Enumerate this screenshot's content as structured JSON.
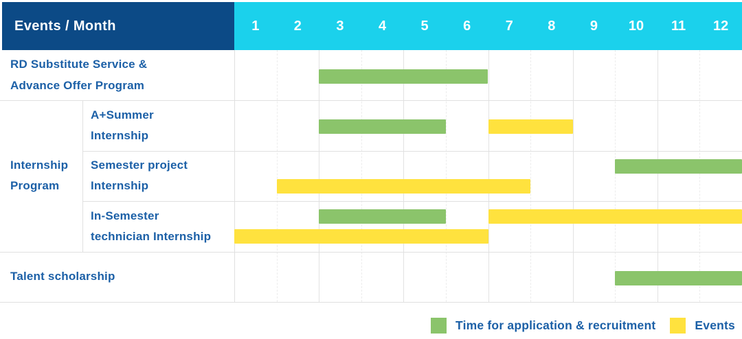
{
  "colors": {
    "background": "#FFFFFF",
    "header_bg": "#0C4A86",
    "months_bg": "#1BD1EC",
    "header_text": "#FFFFFF",
    "label_text": "#1C60A7",
    "application_color": "#8BC46B",
    "events_color": "#FFE23E",
    "grid_solid": "#E2E2E2",
    "grid_dashed": "#ECECEC",
    "border": "#E0E0E0"
  },
  "header": {
    "title": "Events / Month",
    "months": [
      "1",
      "2",
      "3",
      "4",
      "5",
      "6",
      "7",
      "8",
      "9",
      "10",
      "11",
      "12"
    ]
  },
  "legend": {
    "application_label": "Time for application & recruitment",
    "events_label": "Events"
  },
  "chart_data": {
    "type": "bar",
    "variant": "gantt-timeline",
    "title": "Events / Month",
    "x": [
      1,
      2,
      3,
      4,
      5,
      6,
      7,
      8,
      9,
      10,
      11,
      12
    ],
    "xlabel": "Month",
    "xlim": [
      1,
      12
    ],
    "grid": true,
    "legend_position": "bottom-right",
    "series_legend": [
      {
        "key": "application",
        "label": "Time for application & recruitment",
        "color": "#8BC46B"
      },
      {
        "key": "events",
        "label": "Events",
        "color": "#FFE23E"
      }
    ],
    "rows": [
      {
        "label": "RD Substitute Service & Advance Offer Program",
        "label_lines": [
          "RD Substitute Service &",
          "Advance Offer Program"
        ],
        "bars": [
          {
            "series": "application",
            "start_month": 3,
            "end_month": 6,
            "lane": "center"
          }
        ]
      },
      {
        "label": "A+Summer Internship",
        "label_lines": [
          "A+Summer",
          "Internship"
        ],
        "indent": true,
        "group": {
          "label": "Internship Program",
          "label_lines": [
            "Internship",
            "Program"
          ],
          "span": 3
        },
        "bars": [
          {
            "series": "application",
            "start_month": 3,
            "end_month": 5,
            "lane": "center"
          },
          {
            "series": "events",
            "start_month": 7,
            "end_month": 8,
            "lane": "center"
          }
        ]
      },
      {
        "label": "Semester project Internship",
        "label_lines": [
          "Semester project",
          "Internship"
        ],
        "indent": true,
        "bars": [
          {
            "series": "application",
            "start_month": 10,
            "end_month": 12,
            "lane": "top"
          },
          {
            "series": "events",
            "start_month": 2,
            "end_month": 7,
            "lane": "bottom"
          }
        ]
      },
      {
        "label": "In-Semester technician Internship",
        "label_lines": [
          "In-Semester",
          "technician Internship"
        ],
        "indent": true,
        "bars": [
          {
            "series": "application",
            "start_month": 3,
            "end_month": 5,
            "lane": "top"
          },
          {
            "series": "events",
            "start_month": 7,
            "end_month": 12,
            "lane": "top"
          },
          {
            "series": "events",
            "start_month": 1,
            "end_month": 6,
            "lane": "bottom"
          }
        ]
      },
      {
        "label": "Talent scholarship",
        "label_lines": [
          "Talent scholarship"
        ],
        "bars": [
          {
            "series": "application",
            "start_month": 10,
            "end_month": 12,
            "lane": "center"
          }
        ]
      }
    ]
  }
}
